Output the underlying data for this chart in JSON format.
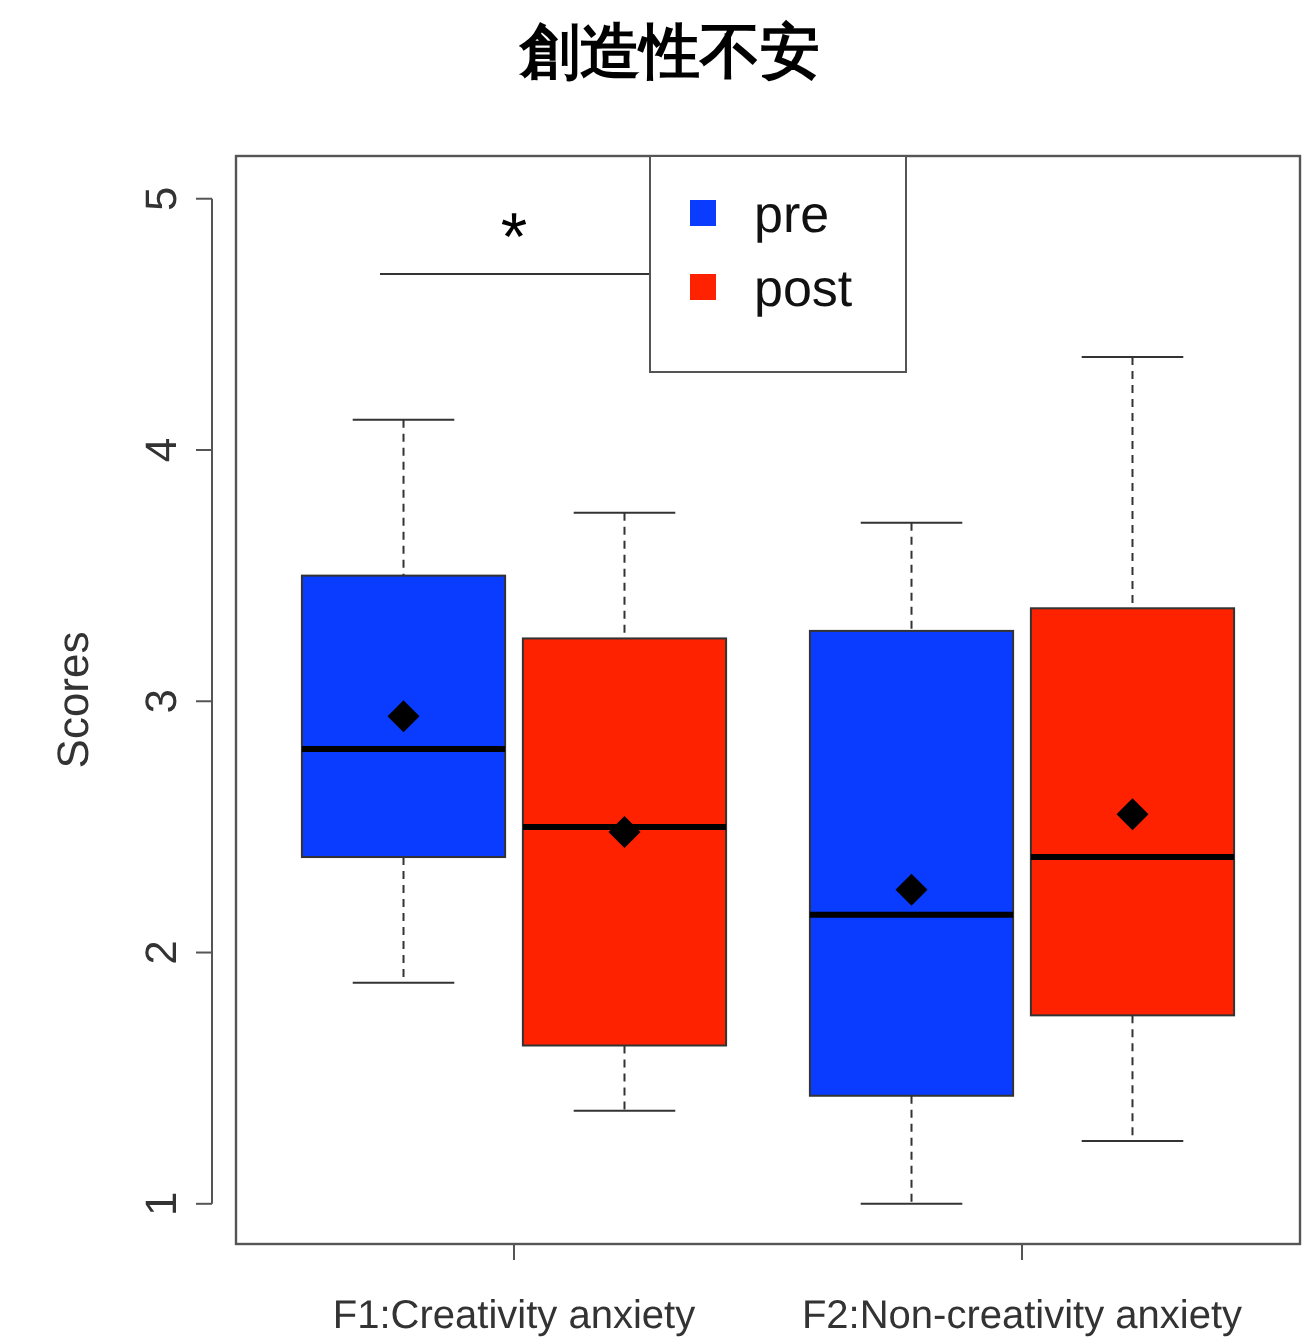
{
  "chart_data": {
    "type": "box",
    "title": "創造性不安",
    "ylabel": "Scores",
    "categories": [
      "F1:Creativity anxiety",
      "F2:Non-creativity anxiety"
    ],
    "series": [
      {
        "name": "pre",
        "color": "#0a3cff",
        "boxes": [
          {
            "low": 1.88,
            "q1": 2.38,
            "median": 2.81,
            "q3": 3.5,
            "high": 4.12,
            "mean": 2.94
          },
          {
            "low": 1.0,
            "q1": 1.43,
            "median": 2.15,
            "q3": 3.28,
            "high": 3.71,
            "mean": 2.25
          }
        ]
      },
      {
        "name": "post",
        "color": "#ff2200",
        "boxes": [
          {
            "low": 1.37,
            "q1": 1.63,
            "median": 2.5,
            "q3": 3.25,
            "high": 3.75,
            "mean": 2.48
          },
          {
            "low": 1.25,
            "q1": 1.75,
            "median": 2.38,
            "q3": 3.37,
            "high": 4.37,
            "mean": 2.55
          }
        ]
      }
    ],
    "ylim": [
      0.84,
      5.17
    ],
    "yticks": [
      1,
      2,
      3,
      4,
      5
    ],
    "legend": "top",
    "marker": "diamond",
    "annotations": [
      "*"
    ]
  }
}
